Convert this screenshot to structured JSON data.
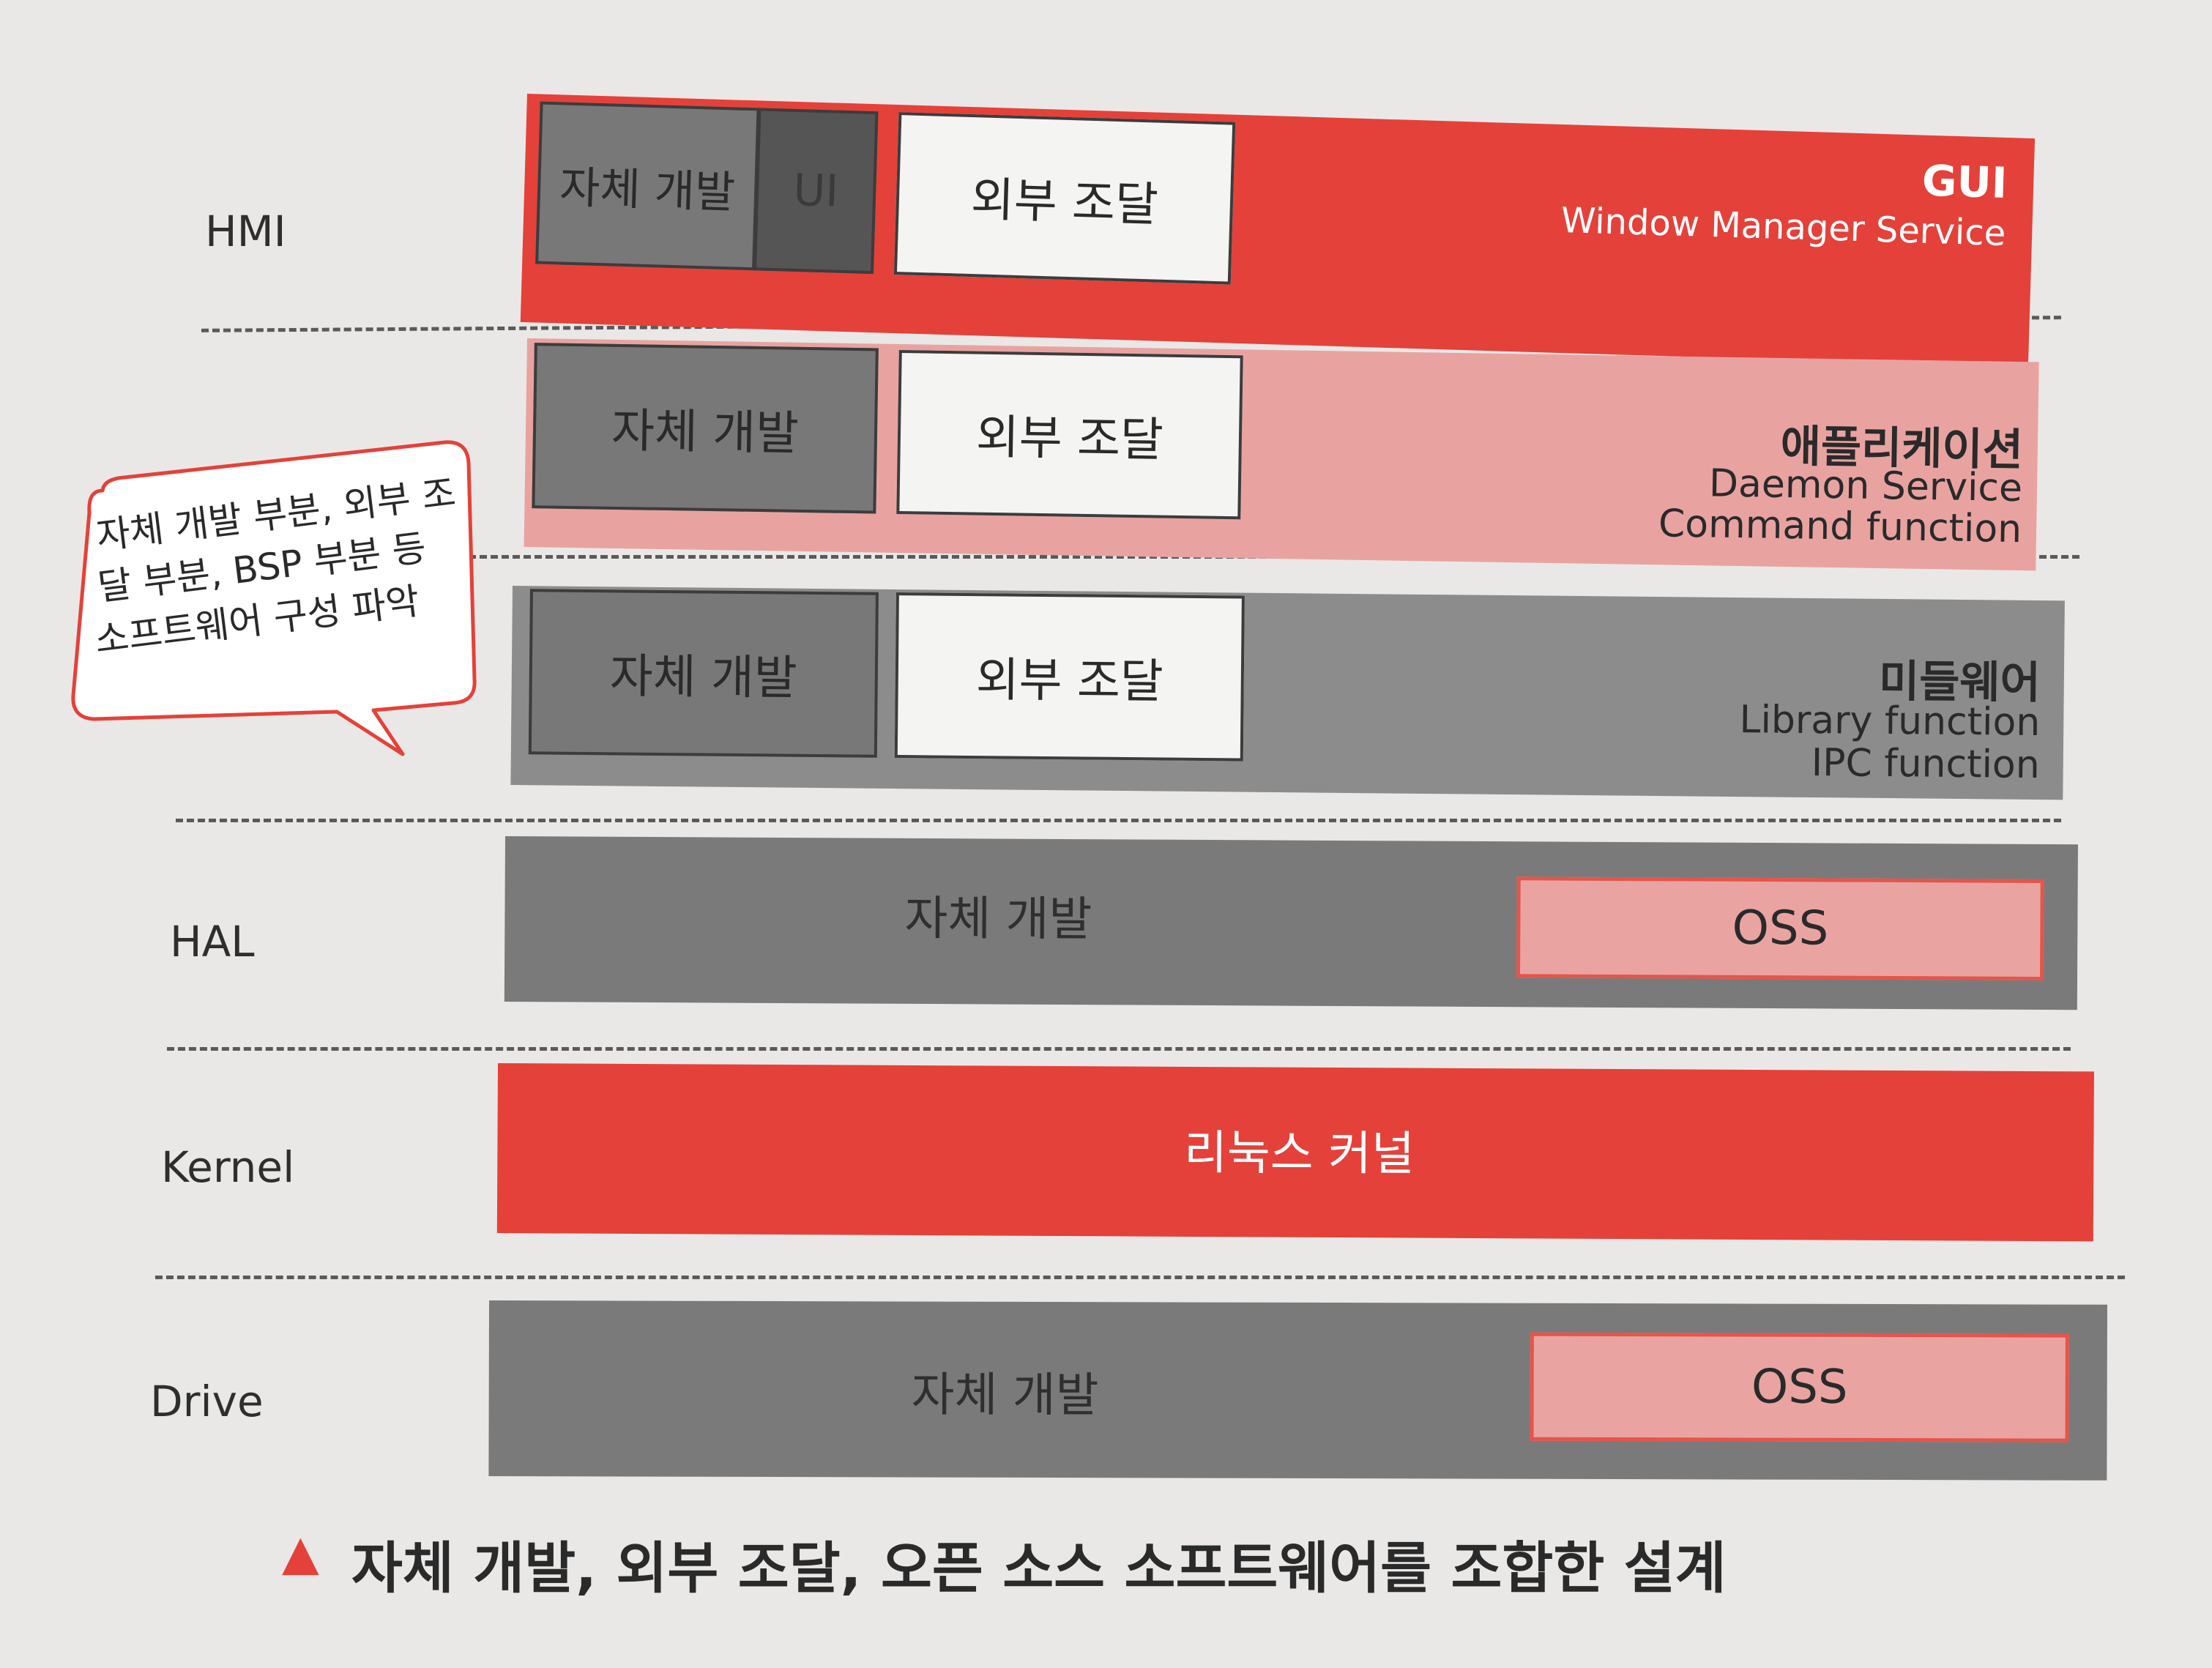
{
  "layers": {
    "hmi": "HMI",
    "hal": "HAL",
    "kernel": "Kernel",
    "drive": "Drive"
  },
  "gui": {
    "title": "GUI",
    "subtitle": "Window Manager Service",
    "self_dev": "자체 개발",
    "ui": "UI",
    "external": "외부 조달"
  },
  "application": {
    "title": "애플리케이션",
    "line1": "Daemon Service",
    "line2": "Command function",
    "self_dev": "자체 개발",
    "external": "외부 조달"
  },
  "middleware": {
    "title": "미들웨어",
    "line1": "Library function",
    "line2": "IPC function",
    "self_dev": "자체 개발",
    "external": "외부 조달"
  },
  "hal": {
    "self_dev": "자체 개발",
    "oss": "OSS"
  },
  "kernel": {
    "label": "리눅스 커널"
  },
  "drive": {
    "self_dev": "자체 개발",
    "oss": "OSS"
  },
  "callout": {
    "line1": "자체 개발 부분, 외부 조",
    "line2": "달 부분, BSP 부분 등",
    "line3": "소프트웨어 구성 파악"
  },
  "caption": {
    "marker": "▲",
    "text": "자체 개발, 외부 조달, 오픈 소스 소프트웨어를 조합한 설계"
  },
  "colors": {
    "red": "#e4413a",
    "pink": "#e8a3a1",
    "gray": "#8c8c8c",
    "dark_gray": "#6e6e6e"
  }
}
